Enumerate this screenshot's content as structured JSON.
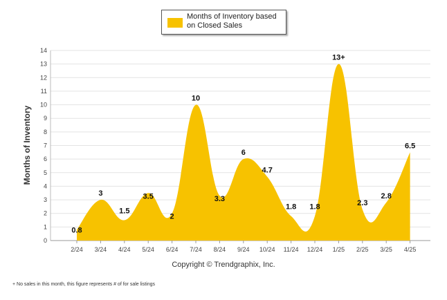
{
  "chart_data": {
    "type": "area",
    "title": "",
    "xlabel": "",
    "ylabel": "Months of Inventory",
    "ylim": [
      0,
      14
    ],
    "yticks": [
      "0",
      "1",
      "2",
      "3",
      "4",
      "5",
      "6",
      "7",
      "8",
      "9",
      "10",
      "11",
      "12",
      "13",
      "14"
    ],
    "grid": true,
    "legend": "top-center",
    "categories": [
      "2/24",
      "3/24",
      "4/24",
      "5/24",
      "6/24",
      "7/24",
      "8/24",
      "9/24",
      "10/24",
      "11/24",
      "12/24",
      "1/25",
      "2/25",
      "3/25",
      "4/25"
    ],
    "series": [
      {
        "name": "Months of Inventory based on Closed Sales",
        "color": "#F7C200",
        "values": [
          0.8,
          3,
          1.5,
          3.5,
          2,
          10,
          3.3,
          6,
          4.7,
          1.8,
          1.8,
          13,
          2.3,
          2.8,
          6.5
        ],
        "labels": [
          "0.8",
          "3",
          "1.5",
          "3.5",
          "2",
          "10",
          "3.3",
          "6",
          "4.7",
          "1.8",
          "1.8",
          "13+",
          "2.3",
          "2.8",
          "6.5"
        ]
      }
    ]
  },
  "legend": {
    "label": "Months of Inventory based on Closed Sales",
    "color": "#F7C200"
  },
  "copyright": "Copyright © Trendgraphix, Inc.",
  "footnote": "+ No sales in this month, this figure represents # of for sale listings"
}
